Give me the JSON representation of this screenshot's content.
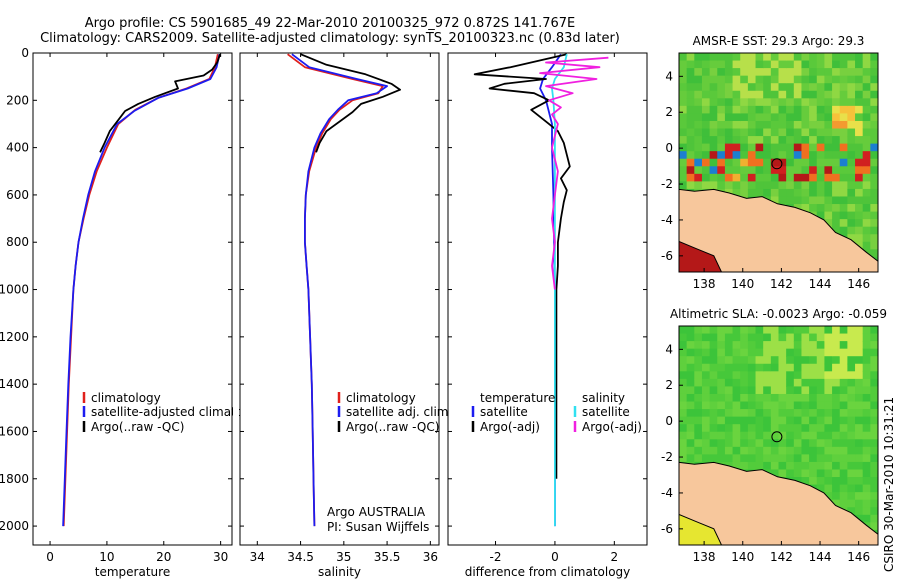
{
  "header": {
    "line1": "Argo profile: CS 5901685_49 22-Mar-2010 20100325_972 0.872S 141.767E",
    "line2": "Climatology: CARS2009. Satellite-adjusted climatology: synTS_20100323.nc (0.83d later)"
  },
  "side_label": "CSIRO 30-Mar-2010 10:31:21",
  "colors": {
    "climatology": "#e0201c",
    "satellite": "#1c1cf0",
    "argo": "#000000",
    "salinity_satellite": "#30e0f0",
    "salinity_argo": "#f020e0",
    "land": "#f7c79c",
    "sea_warm": "#3ac43a"
  },
  "chart_data": [
    {
      "type": "line",
      "id": "temperature",
      "xlabel": "temperature",
      "ylabel": "",
      "xlim": [
        -3,
        32
      ],
      "ylim": [
        2080,
        0
      ],
      "y_reversed": true,
      "xticks": [
        0,
        10,
        20,
        30
      ],
      "yticks": [
        0,
        200,
        400,
        600,
        800,
        1000,
        1200,
        1400,
        1600,
        1800,
        2000
      ],
      "legend": {
        "entries": [
          "climatology",
          "satellite-adjusted climatology",
          "Argo(..raw -QC)"
        ]
      },
      "series": [
        {
          "name": "climatology",
          "color": "#e0201c",
          "points": [
            [
              29.5,
              5
            ],
            [
              29,
              60
            ],
            [
              28,
              110
            ],
            [
              24,
              150
            ],
            [
              19,
              190
            ],
            [
              15,
              240
            ],
            [
              12,
              300
            ],
            [
              10,
              400
            ],
            [
              8.2,
              500
            ],
            [
              6.9,
              600
            ],
            [
              5.9,
              700
            ],
            [
              5,
              800
            ],
            [
              4.5,
              900
            ],
            [
              4.1,
              1000
            ],
            [
              3.7,
              1200
            ],
            [
              3.3,
              1400
            ],
            [
              3,
              1600
            ],
            [
              2.7,
              1800
            ],
            [
              2.4,
              2000
            ]
          ]
        },
        {
          "name": "satellite-adjusted climatology",
          "color": "#1c1cf0",
          "points": [
            [
              29.8,
              5
            ],
            [
              29.3,
              60
            ],
            [
              28.2,
              110
            ],
            [
              24.2,
              150
            ],
            [
              19,
              190
            ],
            [
              14.8,
              245
            ],
            [
              11.8,
              300
            ],
            [
              9.6,
              400
            ],
            [
              7.9,
              500
            ],
            [
              6.7,
              600
            ],
            [
              5.8,
              700
            ],
            [
              5,
              800
            ],
            [
              4.5,
              900
            ],
            [
              4.1,
              1000
            ],
            [
              3.6,
              1200
            ],
            [
              3.2,
              1400
            ],
            [
              2.9,
              1600
            ],
            [
              2.6,
              1800
            ],
            [
              2.3,
              2000
            ]
          ]
        },
        {
          "name": "Argo(..raw -QC)",
          "color": "#000000",
          "points": [
            [
              29.9,
              5
            ],
            [
              29.4,
              40
            ],
            [
              28.5,
              70
            ],
            [
              27,
              95
            ],
            [
              22,
              120
            ],
            [
              22.5,
              150
            ],
            [
              18.5,
              185
            ],
            [
              15.5,
              215
            ],
            [
              13.2,
              245
            ],
            [
              11.8,
              290
            ],
            [
              10.5,
              330
            ],
            [
              9.6,
              380
            ],
            [
              8.8,
              420
            ]
          ]
        }
      ]
    },
    {
      "type": "line",
      "id": "salinity",
      "xlabel": "salinity",
      "xlim": [
        33.8,
        36.1
      ],
      "ylim": [
        2080,
        0
      ],
      "y_reversed": true,
      "xticks": [
        34,
        34.5,
        35,
        35.5,
        36
      ],
      "xticklabels": [
        "34",
        "34.5",
        "35",
        "35.5",
        "36"
      ],
      "legend": {
        "entries": [
          "climatology",
          "satellite adj. clim.",
          "Argo(..raw -QC)"
        ]
      },
      "annotation": [
        "Argo AUSTRALIA",
        "PI: Susan Wijffels"
      ],
      "series": [
        {
          "name": "climatology",
          "color": "#e0201c",
          "points": [
            [
              34.35,
              5
            ],
            [
              34.55,
              60
            ],
            [
              35.1,
              110
            ],
            [
              35.45,
              140
            ],
            [
              35.4,
              170
            ],
            [
              35.1,
              200
            ],
            [
              34.95,
              240
            ],
            [
              34.85,
              280
            ],
            [
              34.75,
              340
            ],
            [
              34.68,
              400
            ],
            [
              34.6,
              500
            ],
            [
              34.56,
              600
            ],
            [
              34.55,
              700
            ],
            [
              34.55,
              800
            ],
            [
              34.57,
              900
            ],
            [
              34.59,
              1000
            ],
            [
              34.61,
              1200
            ],
            [
              34.63,
              1400
            ],
            [
              34.64,
              1600
            ],
            [
              34.65,
              1800
            ],
            [
              34.66,
              2000
            ]
          ]
        },
        {
          "name": "satellite adj. clim.",
          "color": "#1c1cf0",
          "points": [
            [
              34.4,
              5
            ],
            [
              34.6,
              60
            ],
            [
              35.15,
              110
            ],
            [
              35.5,
              140
            ],
            [
              35.38,
              170
            ],
            [
              35.05,
              200
            ],
            [
              34.93,
              240
            ],
            [
              34.83,
              280
            ],
            [
              34.73,
              340
            ],
            [
              34.66,
              400
            ],
            [
              34.59,
              500
            ],
            [
              34.56,
              600
            ],
            [
              34.55,
              700
            ],
            [
              34.55,
              800
            ],
            [
              34.57,
              900
            ],
            [
              34.59,
              1000
            ],
            [
              34.61,
              1200
            ],
            [
              34.63,
              1400
            ],
            [
              34.64,
              1600
            ],
            [
              34.65,
              1800
            ],
            [
              34.66,
              2000
            ]
          ]
        },
        {
          "name": "Argo(..raw -QC)",
          "color": "#000000",
          "points": [
            [
              34.5,
              5
            ],
            [
              34.8,
              50
            ],
            [
              35.25,
              90
            ],
            [
              35.55,
              130
            ],
            [
              35.65,
              155
            ],
            [
              35.45,
              185
            ],
            [
              35.2,
              215
            ],
            [
              35.1,
              250
            ],
            [
              34.95,
              290
            ],
            [
              34.8,
              330
            ],
            [
              34.72,
              380
            ],
            [
              34.68,
              420
            ]
          ]
        }
      ]
    },
    {
      "type": "line",
      "id": "difference",
      "xlabel": "difference from climatology",
      "xlim": [
        -3.6,
        3.1
      ],
      "ylim": [
        2080,
        0
      ],
      "y_reversed": true,
      "xticks": [
        -2,
        0,
        2
      ],
      "legend": {
        "headers": [
          "temperature",
          "salinity"
        ],
        "entries": [
          "satellite",
          "Argo(-adj)",
          "satellite",
          "Argo(-adj)"
        ]
      },
      "series": [
        {
          "name": "temperature satellite",
          "color": "#1c1cf0",
          "points": [
            [
              0.2,
              5
            ],
            [
              -0.1,
              60
            ],
            [
              -0.4,
              110
            ],
            [
              -0.5,
              150
            ],
            [
              -0.3,
              200
            ],
            [
              -0.1,
              300
            ],
            [
              -0.1,
              400
            ],
            [
              -0.05,
              600
            ],
            [
              0,
              1000
            ],
            [
              0,
              1500
            ],
            [
              0,
              2000
            ]
          ]
        },
        {
          "name": "temperature Argo(-adj)",
          "color": "#000000",
          "points": [
            [
              0.4,
              5
            ],
            [
              -1.5,
              60
            ],
            [
              -2.7,
              90
            ],
            [
              -0.3,
              110
            ],
            [
              -1.7,
              130
            ],
            [
              -2.2,
              150
            ],
            [
              -0.7,
              170
            ],
            [
              -0.2,
              200
            ],
            [
              -0.8,
              240
            ],
            [
              -0.3,
              290
            ],
            [
              0.1,
              330
            ],
            [
              0.3,
              380
            ],
            [
              0.4,
              430
            ],
            [
              0.5,
              480
            ],
            [
              0.2,
              530
            ],
            [
              0.4,
              580
            ],
            [
              0.3,
              630
            ],
            [
              0.2,
              700
            ],
            [
              0.1,
              800
            ],
            [
              0.1,
              900
            ],
            [
              0.05,
              1000
            ],
            [
              0.05,
              1200
            ],
            [
              0.05,
              1500
            ],
            [
              0.05,
              1800
            ]
          ]
        },
        {
          "name": "salinity satellite",
          "color": "#30e0f0",
          "points": [
            [
              0.4,
              5
            ],
            [
              0.3,
              60
            ],
            [
              0,
              110
            ],
            [
              -0.1,
              150
            ],
            [
              -0.05,
              200
            ],
            [
              0,
              300
            ],
            [
              0,
              500
            ],
            [
              0,
              800
            ],
            [
              0,
              1200
            ],
            [
              0,
              1600
            ],
            [
              0,
              2000
            ]
          ]
        },
        {
          "name": "salinity Argo(-adj)",
          "color": "#f020e0",
          "points": [
            [
              1.8,
              20
            ],
            [
              -0.3,
              40
            ],
            [
              1.5,
              60
            ],
            [
              -0.5,
              85
            ],
            [
              1.4,
              110
            ],
            [
              -0.3,
              140
            ],
            [
              0.6,
              170
            ],
            [
              -0.2,
              200
            ],
            [
              0.2,
              230
            ],
            [
              -0.1,
              260
            ],
            [
              0.1,
              300
            ],
            [
              0,
              350
            ],
            [
              -0.1,
              400
            ],
            [
              0.1,
              500
            ],
            [
              0,
              600
            ],
            [
              -0.1,
              700
            ],
            [
              0,
              800
            ],
            [
              -0.1,
              900
            ],
            [
              0,
              1000
            ]
          ]
        }
      ]
    },
    {
      "type": "heatmap",
      "id": "sst_map",
      "title": "AMSR-E SST: 29.3 Argo: 29.3",
      "xlim": [
        136.7,
        147
      ],
      "ylim": [
        -6.9,
        5.3
      ],
      "xticks": [
        138,
        140,
        142,
        144,
        146
      ],
      "yticks": [
        4,
        2,
        0,
        -2,
        -4,
        -6
      ],
      "argo_position": [
        141.767,
        -0.872
      ]
    },
    {
      "type": "heatmap",
      "id": "sla_map",
      "title": "Altimetric SLA: -0.0023 Argo: -0.059",
      "xlim": [
        136.7,
        147
      ],
      "ylim": [
        -6.9,
        5.3
      ],
      "xticks": [
        138,
        140,
        142,
        144,
        146
      ],
      "yticks": [
        4,
        2,
        0,
        -2,
        -4,
        -6
      ],
      "argo_position": [
        141.767,
        -0.872
      ]
    }
  ]
}
